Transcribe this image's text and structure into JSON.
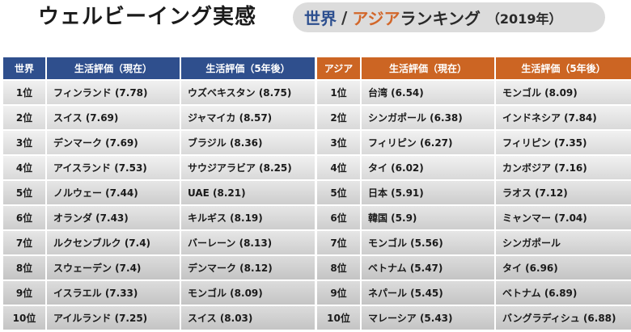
{
  "title": "ウェルビーイング実感",
  "subtitle": {
    "world": "世界",
    "slash": "/",
    "asia": "アジア",
    "ranking": "ランキング",
    "year": "（2019年）"
  },
  "world_table": {
    "headers": [
      "世界",
      "生活評価（現在）",
      "生活評価（5年後）"
    ],
    "rows": [
      [
        "1位",
        "フィンランド (7.78)",
        "ウズベキスタン (8.75)"
      ],
      [
        "2位",
        "スイス (7.69)",
        "ジャマイカ (8.57)"
      ],
      [
        "3位",
        "デンマーク (7.69)",
        "ブラジル (8.36)"
      ],
      [
        "4位",
        "アイスランド (7.53)",
        "サウジアラビア (8.25)"
      ],
      [
        "5位",
        "ノルウェー (7.44)",
        "UAE (8.21)"
      ],
      [
        "6位",
        "オランダ (7.43)",
        "キルギス (8.19)"
      ],
      [
        "7位",
        "ルクセンブルク (7.4)",
        "バーレーン (8.13)"
      ],
      [
        "8位",
        "スウェーデン (7.4)",
        "デンマーク (8.12)"
      ],
      [
        "9位",
        "イスラエル (7.33)",
        "モンゴル (8.09)"
      ],
      [
        "10位",
        "アイルランド (7.25)",
        "スイス (8.03)"
      ]
    ]
  },
  "asia_table": {
    "headers": [
      "アジア",
      "生活評価（現在）",
      "生活評価（5年後）"
    ],
    "rows": [
      [
        "1位",
        "台湾 (6.54)",
        "モンゴル (8.09)"
      ],
      [
        "2位",
        "シンガポール (6.38)",
        "インドネシア (7.84)"
      ],
      [
        "3位",
        "フィリピン (6.27)",
        "フィリピン (7.35)"
      ],
      [
        "4位",
        "タイ (6.02)",
        "カンボジア (7.16)"
      ],
      [
        "5位",
        "日本 (5.91)",
        "ラオス (7.12)"
      ],
      [
        "6位",
        "韓国 (5.9)",
        "ミャンマー (7.04)"
      ],
      [
        "7位",
        "モンゴル (5.56)",
        "シンガポール"
      ],
      [
        "8位",
        "ベトナム (5.47)",
        "タイ (6.96)"
      ],
      [
        "9位",
        "ネパール (5.45)",
        "ベトナム (6.89)"
      ],
      [
        "10位",
        "マレーシア (5.43)",
        "バングラディシュ (6.88)"
      ]
    ]
  },
  "colors": {
    "world_header": "#2f4f8d",
    "asia_header": "#cc6523",
    "subtitle_world": "#2d4f8f",
    "subtitle_asia": "#d2672a"
  }
}
